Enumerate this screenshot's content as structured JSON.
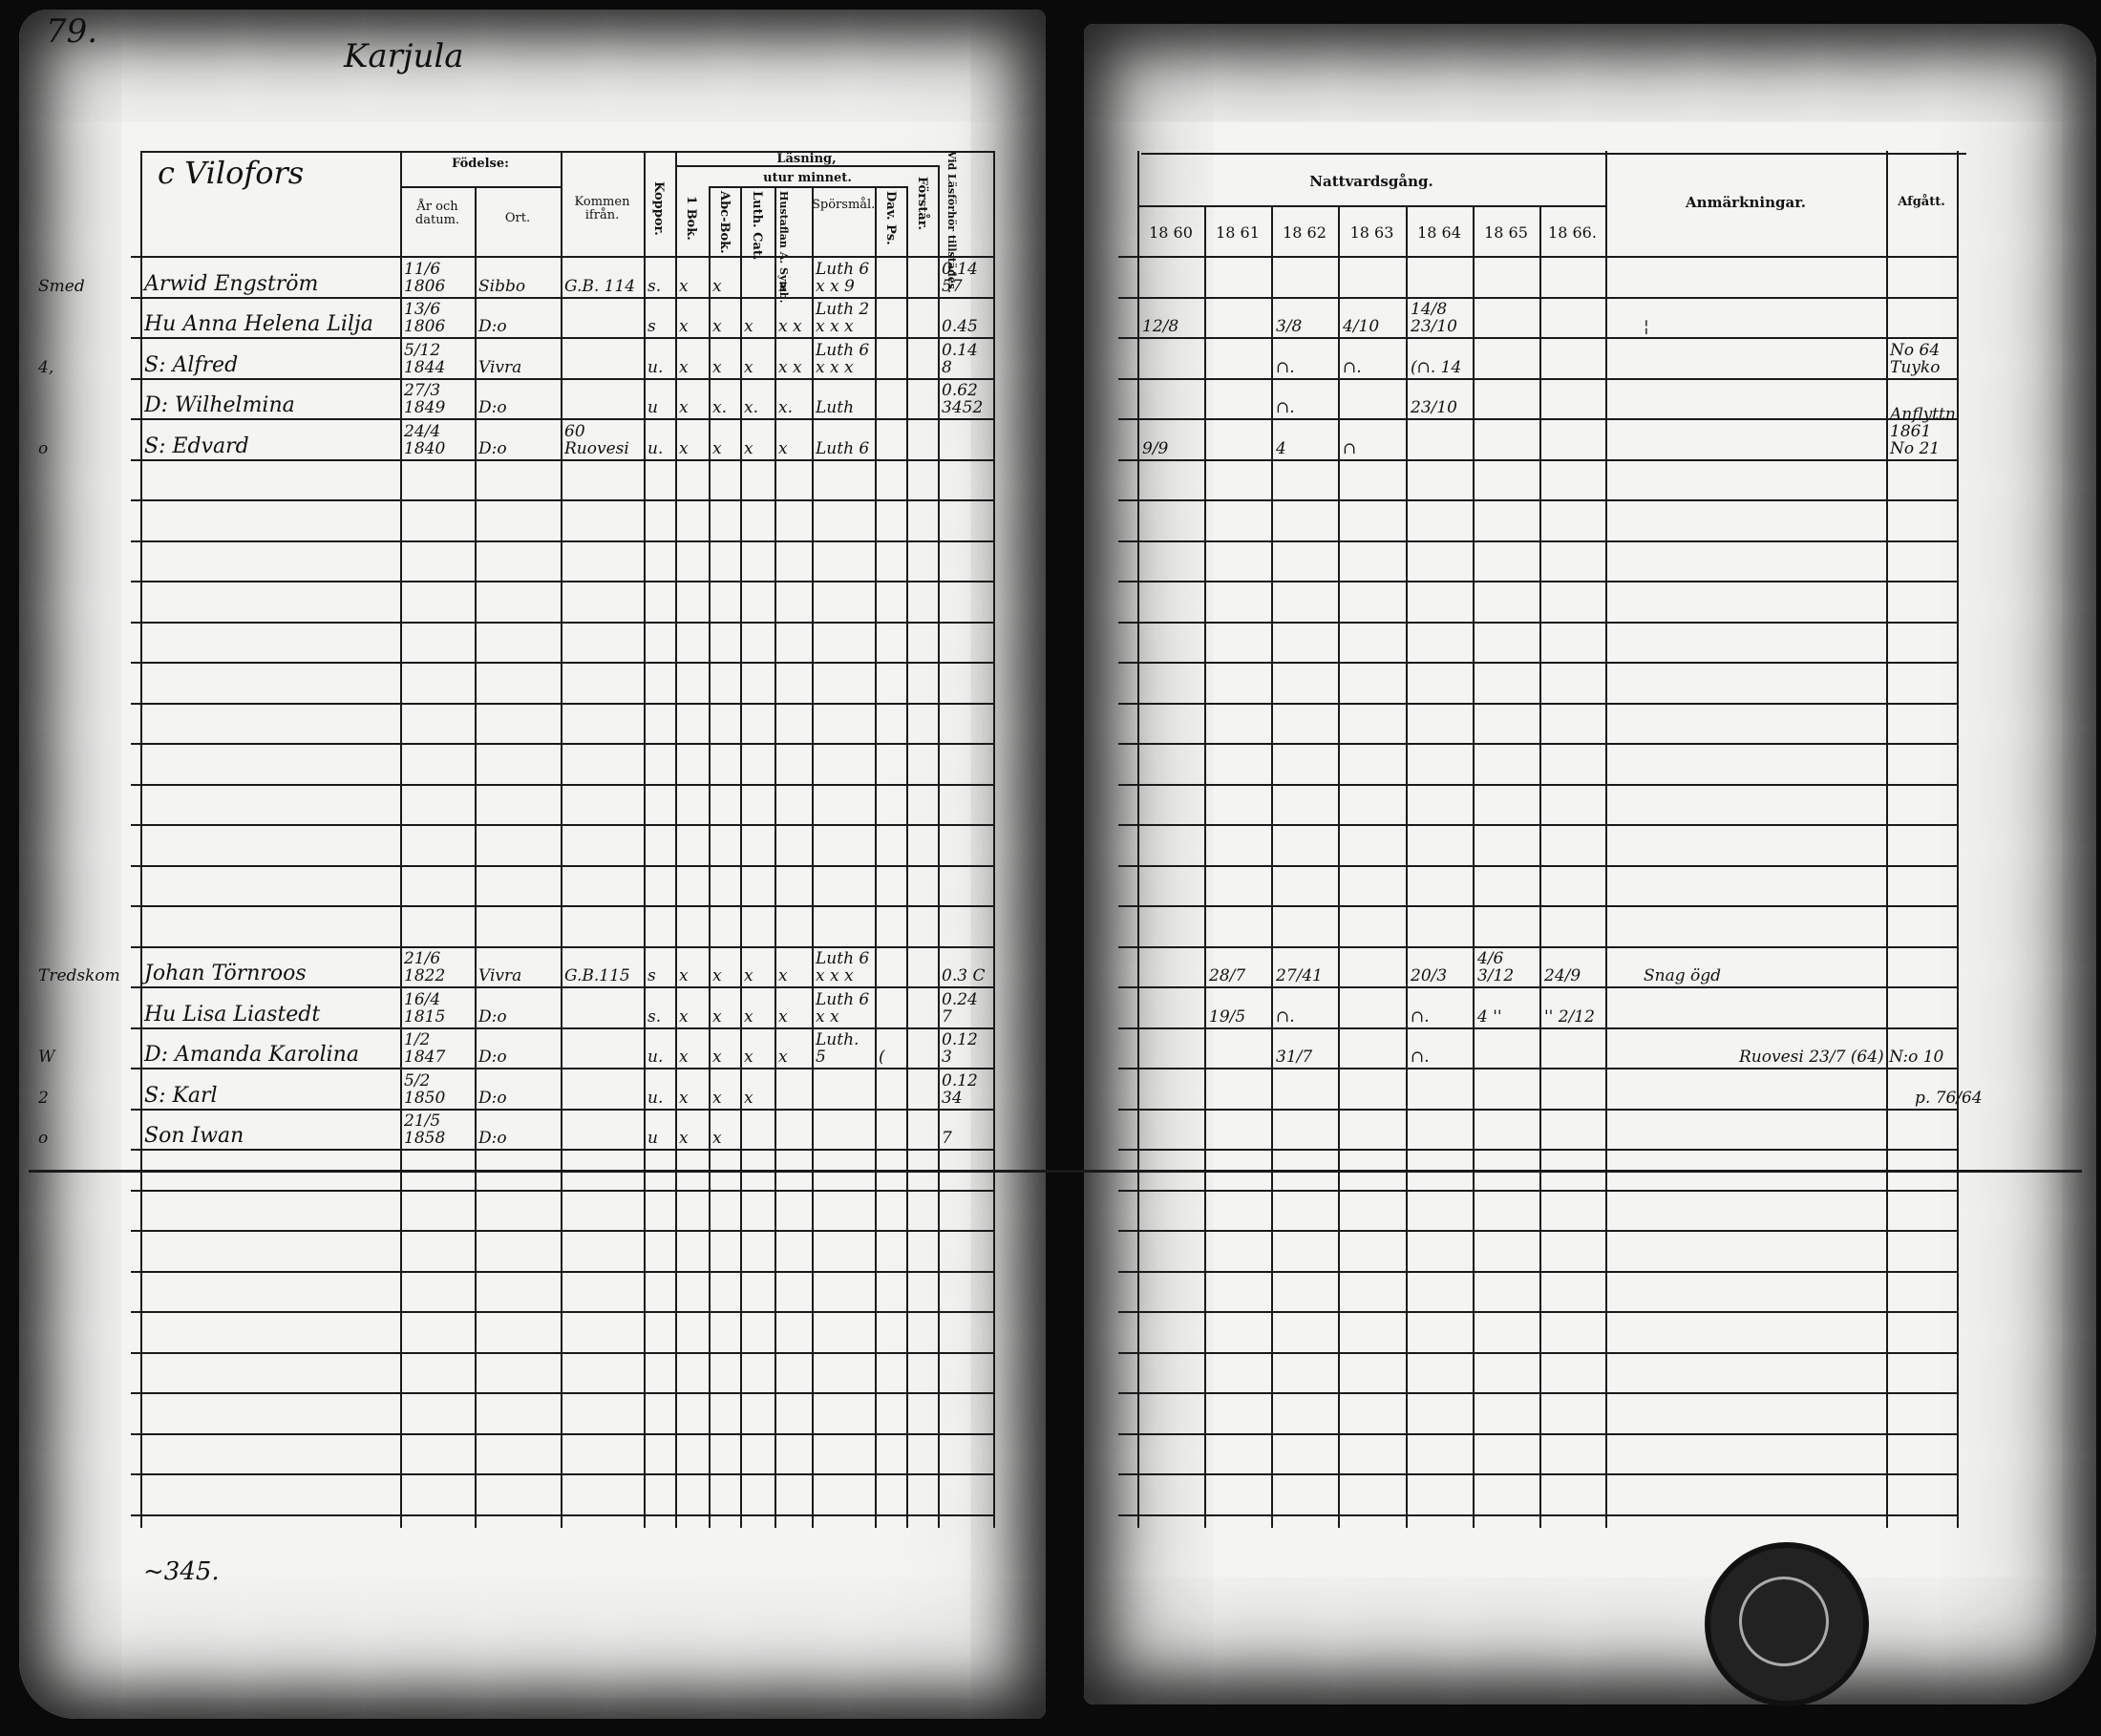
{
  "page_number": "79.",
  "parish_title": "Karjula",
  "footer_note": "~345.",
  "stamp": "archive-stamp",
  "left": {
    "village": "c Vilofors",
    "headers": {
      "fodelse": "Födelse:",
      "ar_datum": "År och datum.",
      "ort": "Ort.",
      "kommen": "Kommen ifrån.",
      "koppor": "Koppor.",
      "lasning": "Läsning,",
      "utur_minnet": "utur minnet.",
      "bok1": "1 Bok.",
      "abc": "Abc-Bok.",
      "luth": "Luth. Cat.",
      "hustaflan": "Hustaflan A. Symb.",
      "sporsmal": "Spörsmål.",
      "dav": "Dav. Ps.",
      "forstar": "Förstår.",
      "vid": "Vid Läsförhör tillstädes."
    },
    "rows": [
      {
        "margin": "Smed",
        "name": "Arwid Engström",
        "date": "11/6 1806",
        "place": "Sibbo",
        "from": "G.B. 114",
        "koppor": "s.",
        "bok": "x",
        "abc": "x",
        "luth": "",
        "husf": "x",
        "spor": "Luth 6 x x 9",
        "dav": "",
        "forstar": "",
        "vid": "0.14 57"
      },
      {
        "margin": "",
        "name": "Hu Anna Helena Lilja",
        "date": "13/6 1806",
        "place": "D:o",
        "from": "",
        "koppor": "s",
        "bok": "x",
        "abc": "x",
        "luth": "x",
        "husf": "x x",
        "spor": "Luth 2 x x x",
        "dav": "",
        "forstar": "",
        "vid": "0.45"
      },
      {
        "margin": "4,",
        "name": "S: Alfred",
        "date": "5/12 1844",
        "place": "Vivra",
        "from": "",
        "koppor": "u.",
        "bok": "x",
        "abc": "x",
        "luth": "x",
        "husf": "x x",
        "spor": "Luth 6 x x x",
        "dav": "",
        "forstar": "",
        "vid": "0.14 8"
      },
      {
        "margin": "",
        "name": "D: Wilhelmina",
        "date": "27/3 1849",
        "place": "D:o",
        "from": "",
        "koppor": "u",
        "bok": "x",
        "abc": "x.",
        "luth": "x.",
        "husf": "x.",
        "spor": "Luth",
        "dav": "",
        "forstar": "",
        "vid": "0.62 3452"
      },
      {
        "margin": "o",
        "name": "S: Edvard",
        "date": "24/4 1840",
        "place": "D:o",
        "from": "60 Ruovesi",
        "koppor": "u.",
        "bok": "x",
        "abc": "x",
        "luth": "x",
        "husf": "x",
        "spor": "Luth 6",
        "dav": "",
        "forstar": "",
        "vid": ""
      },
      {},
      {},
      {},
      {},
      {},
      {},
      {},
      {},
      {},
      {},
      {},
      {},
      {
        "margin": "Tredskom",
        "name": "Johan Törnroos",
        "date": "21/6 1822",
        "place": "Vivra",
        "from": "G.B.115",
        "koppor": "s",
        "bok": "x",
        "abc": "x",
        "luth": "x",
        "husf": "x",
        "spor": "Luth 6 x x x",
        "dav": "",
        "forstar": "",
        "vid": "0.3 C"
      },
      {
        "margin": "",
        "name": "Hu Lisa Liastedt",
        "date": "16/4 1815",
        "place": "D:o",
        "from": "",
        "koppor": "s.",
        "bok": "x",
        "abc": "x",
        "luth": "x",
        "husf": "x",
        "spor": "Luth 6 x x",
        "dav": "",
        "forstar": "",
        "vid": "0.24 7"
      },
      {
        "margin": "W",
        "name": "D: Amanda Karolina",
        "date": "1/2 1847",
        "place": "D:o",
        "from": "",
        "koppor": "u.",
        "bok": "x",
        "abc": "x",
        "luth": "x",
        "husf": "x",
        "spor": "Luth. 5",
        "dav": "(",
        "forstar": "",
        "vid": "0.12 3"
      },
      {
        "margin": "2",
        "name": "S: Karl",
        "date": "5/2 1850",
        "place": "D:o",
        "from": "",
        "koppor": "u.",
        "bok": "x",
        "abc": "x",
        "luth": "x",
        "husf": "",
        "spor": "",
        "dav": "",
        "forstar": "",
        "vid": "0.12 34"
      },
      {
        "margin": "o",
        "name": "Son Iwan",
        "date": "21/5 1858",
        "place": "D:o",
        "from": "",
        "koppor": "u",
        "bok": "x",
        "abc": "x",
        "luth": "",
        "husf": "",
        "spor": "",
        "dav": "",
        "forstar": "",
        "vid": "7"
      }
    ]
  },
  "right": {
    "headers": {
      "nattvard": "Nattvardsgång.",
      "years": [
        "18 60",
        "18 61",
        "18 62",
        "18 63",
        "18 64",
        "18 65",
        "18 66."
      ],
      "anmarkningar": "Anmärkningar.",
      "afgatt": "Afgått."
    },
    "rows": [
      {},
      {
        "y": [
          "12/8",
          "",
          "3/8",
          "4/10",
          "14/8 23/10",
          "",
          ""
        ],
        "anm": "¦",
        "afg": ""
      },
      {
        "y": [
          "",
          "",
          "∩.",
          "∩.",
          "(∩. 14",
          "",
          ""
        ],
        "anm": "",
        "afg": "No 64 Tuyko"
      },
      {
        "y": [
          "",
          "",
          "∩.",
          "",
          "23/10",
          "",
          ""
        ],
        "anm": "",
        "afg": ""
      },
      {
        "y": [
          "9/9",
          "",
          "4",
          "∩",
          "",
          "",
          ""
        ],
        "anm": "",
        "afg": "Anflyttn 1861 No 21"
      },
      {},
      {},
      {},
      {},
      {},
      {},
      {},
      {},
      {},
      {},
      {},
      {},
      {
        "y": [
          "",
          "28/7",
          "27/41",
          "",
          "20/3",
          "4/6 3/12",
          "24/9"
        ],
        "anm": "Snag ögd",
        "afg": ""
      },
      {
        "y": [
          "",
          "19/5",
          "∩.",
          "",
          "∩.",
          "4 ''",
          "'' 2/12"
        ],
        "anm": "",
        "afg": ""
      },
      {
        "y": [
          "",
          "",
          "31/7",
          "",
          "∩.",
          "",
          ""
        ],
        "anm": "Ruovesi 23/7 (64) N:o 10",
        "afg": "p. 76/64"
      }
    ]
  }
}
